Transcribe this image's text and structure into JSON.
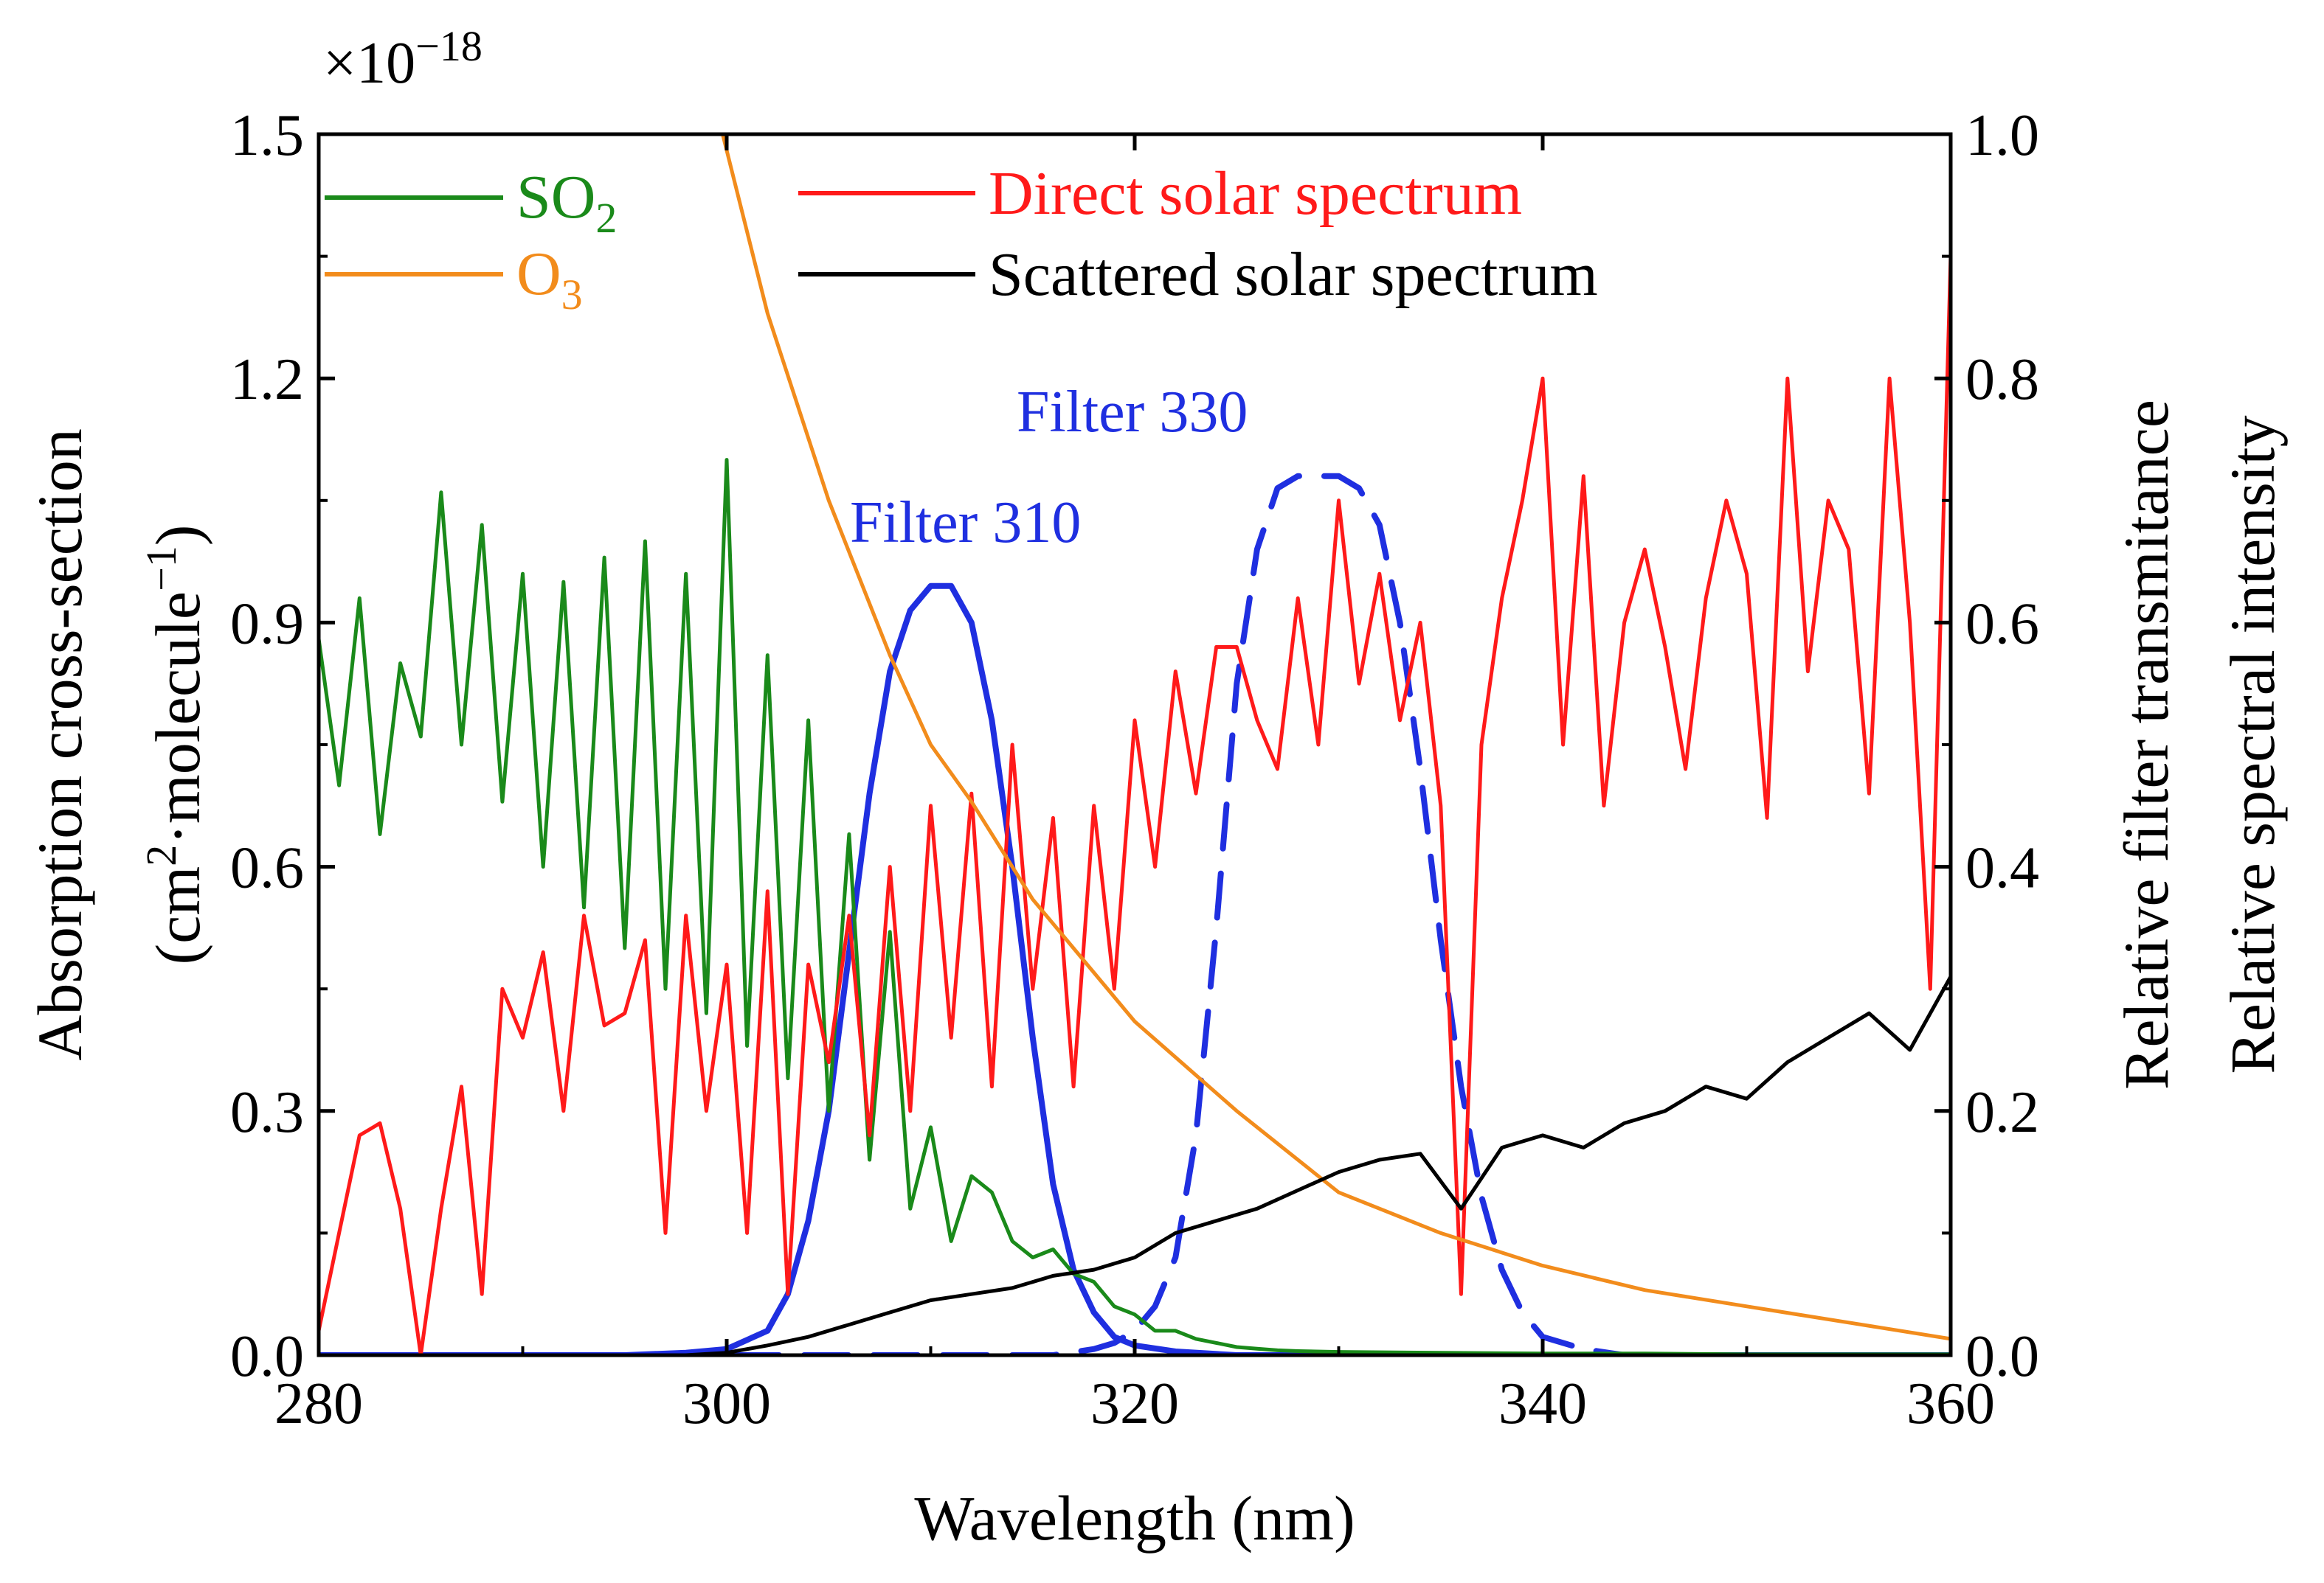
{
  "chart_data": {
    "type": "line",
    "xlabel": "Wavelength (nm)",
    "ylabel_left_line1": "Absorption cross-section",
    "ylabel_left_line2": {
      "pre": "(cm",
      "sup1": "2",
      "mid": "·molecule",
      "sup2": "−1",
      "post": ")"
    },
    "ylabel_right_1": "Relative filter transmitance",
    "ylabel_right_2": "Relative spectral intensity",
    "scale_label": {
      "base": "×10",
      "exp": "−18"
    },
    "xlim": [
      280,
      360
    ],
    "ylim_left": [
      0,
      1.5
    ],
    "ylim_right": [
      0,
      1.0
    ],
    "x_ticks": [
      280,
      300,
      320,
      340,
      360
    ],
    "x_tick_labels": [
      "280",
      "300",
      "320",
      "340",
      "360"
    ],
    "y_left_ticks": [
      0,
      0.3,
      0.6,
      0.9,
      1.2,
      1.5
    ],
    "y_left_tick_labels": [
      "0.0",
      "0.3",
      "0.6",
      "0.9",
      "1.2",
      "1.5"
    ],
    "y_right_ticks": [
      0,
      0.2,
      0.4,
      0.6,
      0.8,
      1.0
    ],
    "y_right_tick_labels": [
      "0.0",
      "0.2",
      "0.4",
      "0.6",
      "0.8",
      "1.0"
    ],
    "colors": {
      "so2": "#1a8a1a",
      "o3": "#f28c1c",
      "direct": "#ff1a1a",
      "scattered": "#000000",
      "filter": "#1f2fe0"
    },
    "legend": [
      {
        "key": "so2",
        "name": "SO",
        "sub": "2"
      },
      {
        "key": "o3",
        "name": "O",
        "sub": "3"
      },
      {
        "key": "direct",
        "name": "Direct solar spectrum"
      },
      {
        "key": "scattered",
        "name": "Scattered solar spectrum"
      }
    ],
    "annotations": [
      {
        "key": "f310",
        "text": "Filter 310"
      },
      {
        "key": "f330",
        "text": "Filter 330"
      }
    ],
    "series": [
      {
        "key": "so2",
        "name": "SO2",
        "axis": "left",
        "style": "solid",
        "x": [
          280,
          281,
          282,
          283,
          284,
          285,
          286,
          287,
          288,
          289,
          290,
          291,
          292,
          293,
          294,
          295,
          296,
          297,
          298,
          299,
          300,
          301,
          302,
          303,
          304,
          305,
          306,
          307,
          308,
          309,
          310,
          311,
          312,
          313,
          314,
          315,
          316,
          317,
          318,
          319,
          320,
          321,
          322,
          323,
          324,
          325,
          326,
          327,
          328,
          330,
          335,
          340,
          345,
          350,
          355,
          360
        ],
        "y": [
          0.88,
          0.7,
          0.93,
          0.64,
          0.85,
          0.76,
          1.06,
          0.75,
          1.02,
          0.68,
          0.96,
          0.6,
          0.95,
          0.55,
          0.98,
          0.5,
          1.0,
          0.45,
          0.96,
          0.42,
          1.1,
          0.38,
          0.86,
          0.34,
          0.78,
          0.3,
          0.64,
          0.24,
          0.52,
          0.18,
          0.28,
          0.14,
          0.22,
          0.2,
          0.14,
          0.12,
          0.13,
          0.1,
          0.09,
          0.06,
          0.05,
          0.03,
          0.03,
          0.02,
          0.015,
          0.01,
          0.008,
          0.006,
          0.005,
          0.004,
          0.003,
          0.002,
          0.002,
          0.001,
          0.001,
          0.001
        ]
      },
      {
        "key": "o3",
        "name": "O3",
        "axis": "left",
        "style": "solid",
        "x": [
          299.8,
          302,
          305,
          308,
          310,
          312,
          315,
          318,
          320,
          325,
          330,
          335,
          340,
          345,
          350,
          355,
          360
        ],
        "y": [
          1.5,
          1.28,
          1.05,
          0.86,
          0.75,
          0.68,
          0.56,
          0.47,
          0.41,
          0.3,
          0.2,
          0.15,
          0.11,
          0.08,
          0.06,
          0.04,
          0.02
        ]
      },
      {
        "key": "direct",
        "name": "Direct solar spectrum",
        "axis": "right",
        "style": "solid",
        "x": [
          280,
          281,
          282,
          283,
          284,
          285,
          286,
          287,
          288,
          289,
          290,
          291,
          292,
          293,
          294,
          295,
          296,
          297,
          298,
          299,
          300,
          301,
          302,
          303,
          304,
          305,
          306,
          307,
          308,
          309,
          310,
          311,
          312,
          313,
          314,
          315,
          316,
          317,
          318,
          319,
          320,
          321,
          322,
          323,
          324,
          325,
          326,
          327,
          328,
          329,
          330,
          331,
          332,
          333,
          334,
          335,
          336,
          337,
          338,
          339,
          340,
          341,
          342,
          343,
          344,
          345,
          346,
          347,
          348,
          349,
          350,
          351,
          352,
          353,
          354,
          355,
          356,
          357,
          358,
          359,
          360
        ],
        "y": [
          0.02,
          0.1,
          0.18,
          0.19,
          0.12,
          0.0,
          0.12,
          0.22,
          0.05,
          0.3,
          0.26,
          0.33,
          0.2,
          0.36,
          0.27,
          0.28,
          0.34,
          0.1,
          0.36,
          0.2,
          0.32,
          0.1,
          0.38,
          0.05,
          0.32,
          0.24,
          0.36,
          0.18,
          0.4,
          0.2,
          0.45,
          0.26,
          0.46,
          0.22,
          0.5,
          0.3,
          0.44,
          0.22,
          0.45,
          0.3,
          0.52,
          0.4,
          0.56,
          0.46,
          0.58,
          0.58,
          0.52,
          0.48,
          0.62,
          0.5,
          0.7,
          0.55,
          0.64,
          0.52,
          0.6,
          0.45,
          0.05,
          0.5,
          0.62,
          0.7,
          0.8,
          0.5,
          0.72,
          0.45,
          0.6,
          0.66,
          0.58,
          0.48,
          0.62,
          0.7,
          0.64,
          0.44,
          0.8,
          0.56,
          0.7,
          0.66,
          0.46,
          0.8,
          0.6,
          0.3,
          0.9
        ]
      },
      {
        "key": "scattered",
        "name": "Scattered solar spectrum",
        "axis": "right",
        "style": "solid",
        "x": [
          296,
          298,
          300,
          302,
          304,
          306,
          308,
          310,
          312,
          314,
          316,
          318,
          320,
          322,
          324,
          326,
          328,
          330,
          332,
          334,
          336,
          338,
          340,
          342,
          344,
          346,
          348,
          350,
          352,
          354,
          356,
          358,
          360
        ],
        "y": [
          0.0,
          0.0,
          0.002,
          0.008,
          0.015,
          0.025,
          0.035,
          0.045,
          0.05,
          0.055,
          0.065,
          0.07,
          0.08,
          0.1,
          0.11,
          0.12,
          0.135,
          0.15,
          0.16,
          0.165,
          0.12,
          0.17,
          0.18,
          0.17,
          0.19,
          0.2,
          0.22,
          0.21,
          0.24,
          0.26,
          0.28,
          0.25,
          0.31
        ]
      },
      {
        "key": "f310",
        "name": "Filter 310",
        "axis": "right",
        "style": "solid",
        "x": [
          280,
          295,
          298,
          300,
          302,
          303,
          304,
          305,
          306,
          307,
          308,
          309,
          310,
          311,
          312,
          313,
          314,
          315,
          316,
          317,
          318,
          319,
          320,
          322,
          325,
          360
        ],
        "y": [
          0.0,
          0.0,
          0.002,
          0.005,
          0.02,
          0.05,
          0.11,
          0.2,
          0.33,
          0.46,
          0.56,
          0.61,
          0.63,
          0.63,
          0.6,
          0.52,
          0.4,
          0.26,
          0.14,
          0.07,
          0.035,
          0.015,
          0.008,
          0.003,
          0.0,
          0.0
        ]
      },
      {
        "key": "f330",
        "name": "Filter 330",
        "axis": "right",
        "style": "dashed",
        "x": [
          280,
          316,
          318,
          319,
          320,
          321,
          322,
          323,
          324,
          325,
          326,
          327,
          328,
          329,
          330,
          331,
          332,
          333,
          334,
          335,
          336,
          337,
          338,
          339,
          340,
          342,
          344,
          360
        ],
        "y": [
          0.0,
          0.0,
          0.005,
          0.01,
          0.02,
          0.04,
          0.08,
          0.18,
          0.35,
          0.55,
          0.66,
          0.71,
          0.72,
          0.72,
          0.72,
          0.71,
          0.68,
          0.6,
          0.48,
          0.34,
          0.22,
          0.13,
          0.07,
          0.035,
          0.015,
          0.005,
          0.0,
          0.0
        ]
      }
    ]
  }
}
